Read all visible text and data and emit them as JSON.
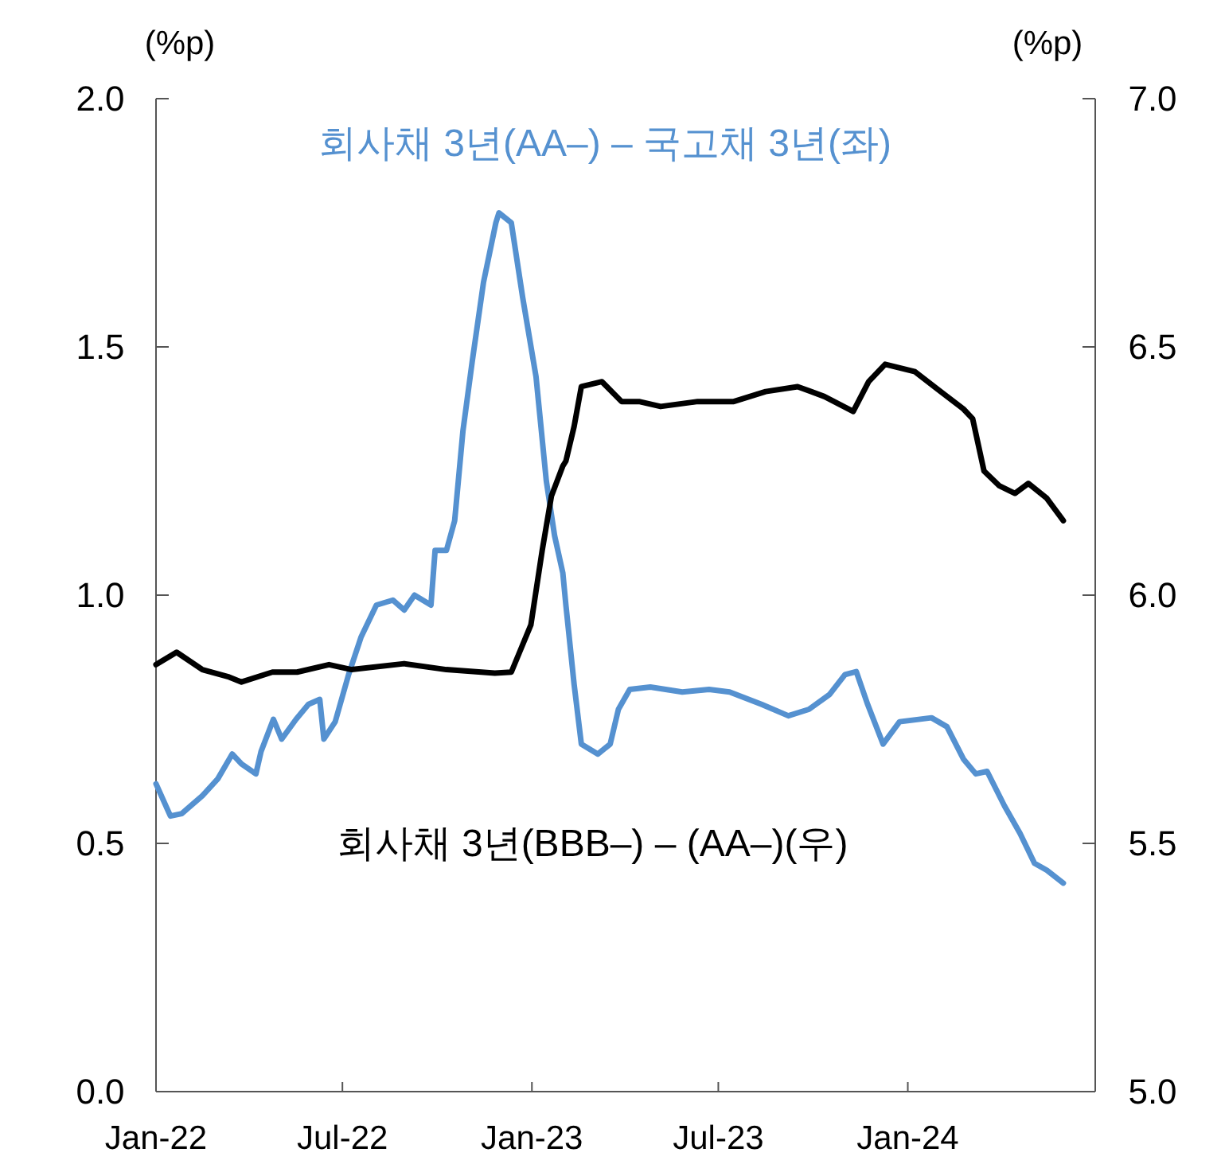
{
  "chart_data": {
    "type": "line",
    "ylabel": "(%p)",
    "y2label": "(%p)",
    "xlim": [
      "2022-01-01",
      "2024-07-01"
    ],
    "xticks": [
      {
        "value": "2022-01-01",
        "label": "Jan-22"
      },
      {
        "value": "2022-07-01",
        "label": "Jul-22"
      },
      {
        "value": "2023-01-01",
        "label": "Jan-23"
      },
      {
        "value": "2023-07-01",
        "label": "Jul-23"
      },
      {
        "value": "2024-01-01",
        "label": "Jan-24"
      }
    ],
    "ylim": [
      0,
      2
    ],
    "yticks": [
      {
        "value": 0,
        "label": "0.0"
      },
      {
        "value": 0.5,
        "label": "0.5"
      },
      {
        "value": 1,
        "label": "1.0"
      },
      {
        "value": 1.5,
        "label": "1.5"
      },
      {
        "value": 2,
        "label": "2.0"
      }
    ],
    "y2lim": [
      5,
      7
    ],
    "y2ticks": [
      {
        "value": 5,
        "label": "5.0"
      },
      {
        "value": 5.5,
        "label": "5.5"
      },
      {
        "value": 6,
        "label": "6.0"
      },
      {
        "value": 6.5,
        "label": "6.5"
      },
      {
        "value": 7,
        "label": "7.0"
      }
    ],
    "grid": false,
    "line_style": "solid",
    "series": [
      {
        "name": "회사채 3년(AA–) – 국고채 3년(좌)",
        "color": "#5591d0",
        "axis": "y",
        "x": [
          "2022-01-01",
          "2022-01-15",
          "2022-01-26",
          "2022-02-15",
          "2022-03-02",
          "2022-03-16",
          "2022-03-25",
          "2022-04-08",
          "2022-04-13",
          "2022-04-25",
          "2022-05-03",
          "2022-05-17",
          "2022-05-29",
          "2022-06-09",
          "2022-06-13",
          "2022-06-24",
          "2022-07-07",
          "2022-07-19",
          "2022-08-03",
          "2022-08-19",
          "2022-08-30",
          "2022-09-09",
          "2022-09-25",
          "2022-09-29",
          "2022-10-10",
          "2022-10-18",
          "2022-10-26",
          "2022-11-04",
          "2022-11-15",
          "2022-11-27",
          "2022-11-30",
          "2022-12-12",
          "2022-12-23",
          "2023-01-05",
          "2023-01-15",
          "2023-01-23",
          "2023-01-31",
          "2023-02-03",
          "2023-02-11",
          "2023-02-18",
          "2023-03-06",
          "2023-03-18",
          "2023-03-26",
          "2023-04-06",
          "2023-04-26",
          "2023-05-27",
          "2023-06-22",
          "2023-07-12",
          "2023-08-12",
          "2023-09-07",
          "2023-09-27",
          "2023-10-17",
          "2023-11-01",
          "2023-11-12",
          "2023-11-23",
          "2023-12-08",
          "2023-12-24",
          "2024-01-24",
          "2024-02-08",
          "2024-02-24",
          "2024-03-07",
          "2024-03-18",
          "2024-04-04",
          "2024-04-19",
          "2024-05-03",
          "2024-05-15",
          "2024-05-31"
        ],
        "values": [
          0.62,
          0.555,
          0.56,
          0.596,
          0.63,
          0.68,
          0.66,
          0.64,
          0.685,
          0.75,
          0.71,
          0.75,
          0.78,
          0.79,
          0.71,
          0.745,
          0.84,
          0.915,
          0.98,
          0.99,
          0.97,
          1.0,
          0.98,
          1.09,
          1.09,
          1.15,
          1.33,
          1.47,
          1.63,
          1.75,
          1.77,
          1.75,
          1.6,
          1.44,
          1.23,
          1.12,
          1.045,
          0.98,
          0.82,
          0.7,
          0.68,
          0.7,
          0.77,
          0.81,
          0.815,
          0.805,
          0.81,
          0.805,
          0.78,
          0.757,
          0.77,
          0.8,
          0.84,
          0.846,
          0.78,
          0.7,
          0.745,
          0.753,
          0.735,
          0.67,
          0.64,
          0.645,
          0.575,
          0.52,
          0.46,
          0.446,
          0.42
        ]
      },
      {
        "name": "회사채 3년(BBB–) – (AA–)(우)",
        "color": "#000000",
        "axis": "y2",
        "x": [
          "2022-01-01",
          "2022-01-21",
          "2022-02-15",
          "2022-03-13",
          "2022-03-25",
          "2022-04-24",
          "2022-05-18",
          "2022-06-18",
          "2022-07-10",
          "2022-08-30",
          "2022-10-10",
          "2022-11-26",
          "2022-12-12",
          "2022-12-20",
          "2022-12-31",
          "2023-01-11",
          "2023-01-20",
          "2023-01-31",
          "2023-02-03",
          "2023-02-11",
          "2023-02-18",
          "2023-03-10",
          "2023-03-29",
          "2023-04-15",
          "2023-05-06",
          "2023-06-11",
          "2023-07-16",
          "2023-08-16",
          "2023-09-16",
          "2023-10-12",
          "2023-11-09",
          "2023-11-24",
          "2023-12-10",
          "2024-01-08",
          "2024-02-02",
          "2024-02-24",
          "2024-03-04",
          "2024-03-15",
          "2024-03-30",
          "2024-04-14",
          "2024-04-27",
          "2024-05-15",
          "2024-05-31"
        ],
        "values": [
          5.86,
          5.885,
          5.85,
          5.835,
          5.825,
          5.845,
          5.845,
          5.86,
          5.85,
          5.862,
          5.85,
          5.843,
          5.845,
          5.885,
          5.94,
          6.09,
          6.2,
          6.26,
          6.27,
          6.34,
          6.42,
          6.43,
          6.39,
          6.39,
          6.38,
          6.39,
          6.39,
          6.41,
          6.42,
          6.4,
          6.37,
          6.43,
          6.465,
          6.45,
          6.41,
          6.375,
          6.355,
          6.25,
          6.22,
          6.205,
          6.225,
          6.195,
          6.15
        ]
      }
    ]
  }
}
